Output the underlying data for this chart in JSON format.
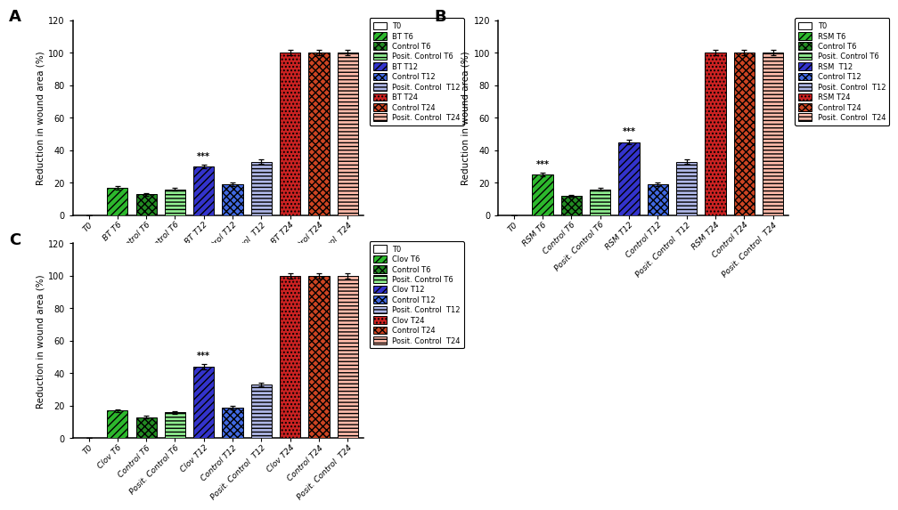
{
  "panels": [
    {
      "label": "A",
      "categories": [
        "T0",
        "BT T6",
        "Control T6",
        "Posit. Control T6",
        "BT T12",
        "Control T12",
        "Posit. Control  T12",
        "BT T24",
        "Control T24",
        "Posit. Control  T24"
      ],
      "values": [
        0,
        17,
        13,
        16,
        30,
        19,
        33,
        100,
        100,
        100
      ],
      "errors": [
        0,
        1.0,
        0.8,
        0.9,
        1.2,
        1.0,
        1.2,
        1.5,
        1.5,
        1.5
      ],
      "star_indices": [
        4
      ],
      "legend_labels": [
        "T0",
        "BT T6",
        "Control T6",
        "Posit. Control T6",
        "BT T12",
        "Control T12",
        "Posit. Control  T12",
        "BT T24",
        "Control T24",
        "Posit. Control  T24"
      ]
    },
    {
      "label": "B",
      "categories": [
        "T0",
        "RSM T6",
        "Control T6",
        "Posit. Control T6",
        "RSM T12",
        "Control T12",
        "Posit. Control  T12",
        "RSM T24",
        "Control T24",
        "Posit. Control  T24"
      ],
      "values": [
        0,
        25,
        12,
        16,
        45,
        19,
        33,
        100,
        100,
        100
      ],
      "errors": [
        0,
        1.2,
        0.8,
        0.9,
        1.5,
        1.0,
        1.2,
        1.5,
        1.5,
        1.5
      ],
      "star_indices": [
        1,
        4
      ],
      "legend_labels": [
        "T0",
        "RSM T6",
        "Control T6",
        "Posit. Control T6",
        "RSM  T12",
        "Control T12",
        "Posit. Control  T12",
        "RSM T24",
        "Control T24",
        "Posit. Control  T24"
      ]
    },
    {
      "label": "C",
      "categories": [
        "T0",
        "Clov T6",
        "Control T6",
        "Posit. Control T6",
        "Clov T12",
        "Control T12",
        "Posit. Control  T12",
        "Clov T24",
        "Control T24",
        "Posit. Control  T24"
      ],
      "values": [
        0,
        17,
        13,
        16,
        44,
        19,
        33,
        100,
        100,
        100
      ],
      "errors": [
        0,
        1.0,
        0.8,
        0.9,
        1.5,
        1.0,
        1.2,
        1.5,
        1.5,
        1.5
      ],
      "star_indices": [
        4
      ],
      "legend_labels": [
        "T0",
        "Clov T6",
        "Control T6",
        "Posit. Control T6",
        "Clov T12",
        "Control T12",
        "Posit. Control  T12",
        "Clov T24",
        "Control T24",
        "Posit. Control  T24"
      ]
    }
  ],
  "ylabel": "Reduction in wound area (%)",
  "ylim": [
    0,
    120
  ],
  "yticks": [
    0,
    20,
    40,
    60,
    80,
    100,
    120
  ]
}
